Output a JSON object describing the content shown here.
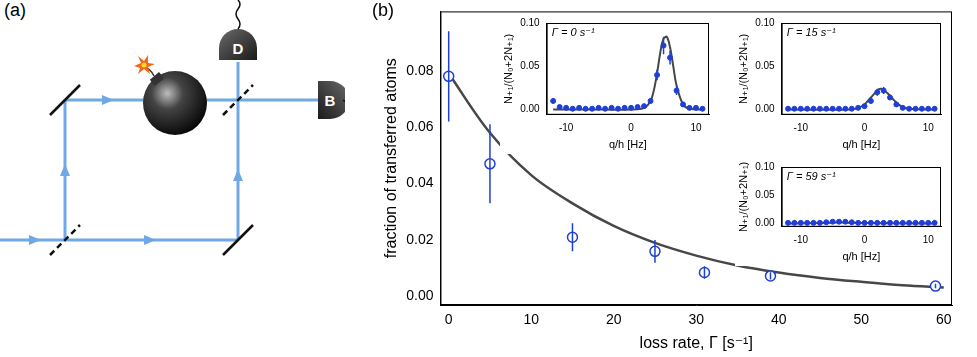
{
  "panel_labels": [
    "(a)",
    "(b)"
  ],
  "diagram": {
    "detectors": [
      "D",
      "B"
    ]
  },
  "chart_data": [
    {
      "type": "scatter",
      "x_label": "loss rate, Γ [s⁻¹]",
      "y_label": "fraction of transferred atoms",
      "xlim": [
        -1,
        61
      ],
      "xticks": [
        0,
        10,
        20,
        30,
        40,
        50,
        60
      ],
      "ylim": [
        -0.003,
        0.101
      ],
      "yticks": [
        {
          "value": 0,
          "label": "0.00"
        },
        {
          "value": 0.02,
          "label": "0.02"
        },
        {
          "value": 0.04,
          "label": "0.04"
        },
        {
          "value": 0.06,
          "label": "0.06"
        },
        {
          "value": 0.08,
          "label": "0.08"
        }
      ],
      "grid": false,
      "series": [
        {
          "type": "line",
          "color": "#474747",
          "line_style": "solid",
          "x": [
            0,
            5,
            10,
            15,
            20,
            25,
            30,
            35,
            40,
            45,
            50,
            55,
            60
          ],
          "values": [
            0.079,
            0.058,
            0.043,
            0.033,
            0.025,
            0.019,
            0.0145,
            0.011,
            0.0085,
            0.0066,
            0.0052,
            0.004,
            0.0032
          ]
        },
        {
          "type": "scatter",
          "color": "#1f3fd6",
          "marker": "open_circle",
          "x": [
            0,
            5,
            15,
            25,
            31,
            39,
            59
          ],
          "values": [
            0.078,
            0.047,
            0.021,
            0.016,
            0.0085,
            0.0073,
            0.0037
          ],
          "errors": [
            0.016,
            0.014,
            0.005,
            0.004,
            0.0022,
            0.0013,
            0.0008
          ]
        }
      ]
    },
    {
      "type": "scatter",
      "title": "Γ = 0 s⁻¹",
      "x_label": "q/h [Hz]",
      "y_label": "N₊₁/(N₀+2N₊₁)",
      "xlim": [
        -13,
        12
      ],
      "xticks": [
        -10,
        0,
        10
      ],
      "ylim": [
        -0.006,
        0.1
      ],
      "yticks": [
        {
          "value": 0,
          "label": "0.00"
        },
        {
          "value": 0.05,
          "label": "0.05"
        },
        {
          "value": 0.1,
          "label": "0.10"
        }
      ],
      "grid": false,
      "series": [
        {
          "type": "line",
          "color": "#474747",
          "line_style": "solid",
          "x": [
            -12,
            -4,
            0,
            2,
            3,
            3.5,
            4,
            4.5,
            5,
            5.5,
            6,
            6.5,
            7,
            8,
            9,
            11
          ],
          "values": [
            0,
            0,
            0,
            0.002,
            0.01,
            0.022,
            0.042,
            0.066,
            0.082,
            0.084,
            0.072,
            0.05,
            0.028,
            0.006,
            0.001,
            0
          ]
        },
        {
          "type": "scatter",
          "color": "#1f3fd6",
          "marker": "filled_circle",
          "x": [
            -12,
            -11,
            -10,
            -9,
            -8,
            -7,
            -6,
            -5,
            -4,
            -3,
            -2,
            -1,
            0,
            1,
            2,
            3,
            4,
            5,
            6,
            7,
            8,
            9,
            10,
            11
          ],
          "values": [
            0.01,
            0.003,
            0.002,
            0.001,
            0.002,
            0.001,
            0.001,
            0.002,
            0.001,
            0.002,
            0.001,
            0.002,
            0.002,
            0.003,
            0.004,
            0.01,
            0.04,
            0.074,
            0.06,
            0.022,
            0.006,
            0.002,
            0.002,
            0.001
          ],
          "errors": [
            0.003,
            0.002,
            0.002,
            0.002,
            0.002,
            0.002,
            0.002,
            0.002,
            0.002,
            0.002,
            0.002,
            0.002,
            0.002,
            0.002,
            0.002,
            0.003,
            0.006,
            0.01,
            0.008,
            0.005,
            0.003,
            0.002,
            0.002,
            0.002
          ]
        }
      ]
    },
    {
      "type": "scatter",
      "title": "Γ = 15 s⁻¹",
      "x_label": "q/h [Hz]",
      "y_label": "N₊₁/(N₀+2N₊₁)",
      "xlim": [
        -13,
        12
      ],
      "xticks": [
        -10,
        0,
        10
      ],
      "ylim": [
        -0.006,
        0.1
      ],
      "yticks": [
        {
          "value": 0,
          "label": "0.00"
        },
        {
          "value": 0.05,
          "label": "0.05"
        },
        {
          "value": 0.1,
          "label": "0.10"
        }
      ],
      "grid": false,
      "series": [
        {
          "type": "line",
          "color": "#474747",
          "line_style": "solid",
          "x": [
            -12,
            -2,
            -1,
            0,
            1,
            2,
            2.5,
            3,
            4,
            5,
            6,
            7,
            11
          ],
          "values": [
            0,
            0,
            0.002,
            0.006,
            0.014,
            0.022,
            0.024,
            0.023,
            0.016,
            0.008,
            0.003,
            0.001,
            0
          ]
        },
        {
          "type": "scatter",
          "color": "#1f3fd6",
          "marker": "filled_circle",
          "x": [
            -12,
            -11,
            -10,
            -9,
            -8,
            -7,
            -6,
            -5,
            -4,
            -3,
            -2,
            -1,
            0,
            1,
            2,
            3,
            4,
            5,
            6,
            7,
            8,
            9,
            10,
            11
          ],
          "values": [
            0.001,
            0.001,
            0.001,
            0.001,
            0.001,
            0.001,
            0.001,
            0.001,
            0.001,
            0.001,
            0.001,
            0.002,
            0.004,
            0.01,
            0.02,
            0.022,
            0.014,
            0.006,
            0.002,
            0.001,
            0.001,
            0.001,
            0.001,
            0.001
          ],
          "errors": [
            0.001,
            0.001,
            0.001,
            0.001,
            0.001,
            0.001,
            0.001,
            0.001,
            0.001,
            0.001,
            0.001,
            0.001,
            0.002,
            0.003,
            0.004,
            0.004,
            0.003,
            0.002,
            0.001,
            0.001,
            0.001,
            0.001,
            0.001,
            0.001
          ]
        }
      ]
    },
    {
      "type": "scatter",
      "title": "Γ = 59 s⁻¹",
      "x_label": "q/h [Hz]",
      "y_label": "N₊₁/(N₀+2N₊₁)",
      "xlim": [
        -13,
        12
      ],
      "xticks": [
        -10,
        0,
        10
      ],
      "ylim": [
        -0.006,
        0.1
      ],
      "yticks": [
        {
          "value": 0,
          "label": "0.00"
        },
        {
          "value": 0.05,
          "label": "0.05"
        },
        {
          "value": 0.1,
          "label": "0.10"
        }
      ],
      "grid": false,
      "series": [
        {
          "type": "line",
          "color": "#474747",
          "line_style": "solid",
          "x": [
            -12,
            -5,
            -4,
            -3,
            11
          ],
          "values": [
            0,
            0.001,
            0.002,
            0.001,
            0
          ]
        },
        {
          "type": "scatter",
          "color": "#1f3fd6",
          "marker": "filled_circle",
          "x": [
            -12,
            -11,
            -10,
            -9,
            -8,
            -7,
            -6,
            -5,
            -4,
            -3,
            -2,
            -1,
            0,
            1,
            2,
            3,
            4,
            5,
            6,
            7,
            8,
            9,
            10,
            11
          ],
          "values": [
            0.001,
            0.001,
            0.001,
            0.001,
            0.001,
            0.001,
            0.002,
            0.003,
            0.003,
            0.003,
            0.002,
            0.001,
            0.001,
            0.001,
            0.001,
            0.001,
            0.001,
            0.001,
            0.001,
            0.001,
            0.001,
            0.001,
            0.001,
            0.001
          ],
          "errors": [
            0.001,
            0.001,
            0.001,
            0.001,
            0.001,
            0.001,
            0.001,
            0.001,
            0.001,
            0.001,
            0.001,
            0.001,
            0.001,
            0.001,
            0.001,
            0.001,
            0.001,
            0.001,
            0.001,
            0.001,
            0.001,
            0.001,
            0.001,
            0.001
          ]
        }
      ]
    }
  ]
}
